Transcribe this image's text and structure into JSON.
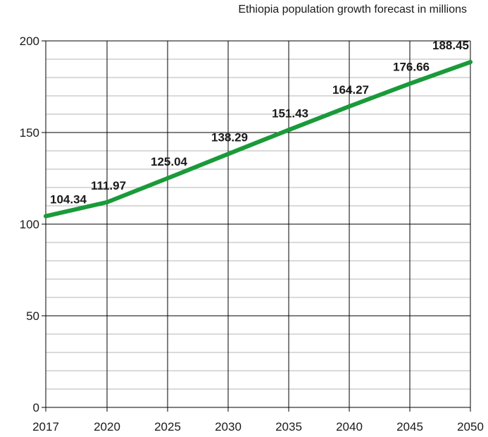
{
  "chart_data": {
    "type": "line",
    "title": "Ethiopia population growth forecast in millions",
    "x": [
      2017,
      2020,
      2025,
      2030,
      2035,
      2040,
      2045,
      2050
    ],
    "series": [
      {
        "values": [
          104.34,
          111.97,
          125.04,
          138.29,
          151.43,
          164.27,
          176.66,
          188.45
        ],
        "labels": [
          "104.34",
          "111.97",
          "125.04",
          "138.29",
          "151.43",
          "164.27",
          "176.66",
          "188.45"
        ]
      }
    ],
    "xticks": [
      "2017",
      "2020",
      "2025",
      "2030",
      "2035",
      "2040",
      "2045",
      "2050"
    ],
    "yticks": [
      "0",
      "50",
      "100",
      "150",
      "200"
    ],
    "ylim": [
      0,
      200
    ],
    "xlim": [
      2017,
      2050
    ],
    "grid": true,
    "colors": {
      "line": "#1a9a3a",
      "grid_major": "#000000",
      "grid_minor": "#b5b5b5"
    }
  }
}
